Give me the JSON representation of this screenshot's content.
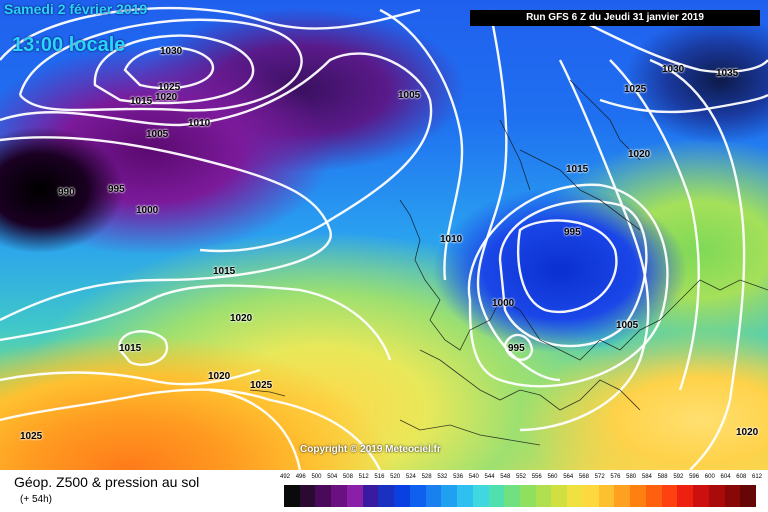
{
  "header": {
    "date": "Samedi 2 février 2019",
    "time": "13:00 locale",
    "run": "Run GFS 6 Z du Jeudi 31 janvier 2019"
  },
  "copyright": "Copyright © 2019 Meteociel.fr",
  "footer": {
    "title": "Géop. Z500 & pression au sol",
    "subtitle": "(+ 54h)"
  },
  "pressure_labels": [
    "1030",
    "1025",
    "1020",
    "1015",
    "1005",
    "1010",
    "1005",
    "990",
    "995",
    "1000",
    "1015",
    "1020",
    "1015",
    "1020",
    "1025",
    "1025",
    "1010",
    "1000",
    "995",
    "995",
    "1005",
    "1015",
    "1020",
    "1025",
    "1030",
    "1035",
    "1020",
    "1005"
  ],
  "scale": {
    "labels": [
      "492",
      "496",
      "500",
      "504",
      "508",
      "512",
      "516",
      "520",
      "524",
      "528",
      "532",
      "536",
      "540",
      "544",
      "548",
      "552",
      "556",
      "560",
      "564",
      "568",
      "572",
      "576",
      "580",
      "584",
      "588",
      "592",
      "596",
      "600",
      "604",
      "608",
      "612"
    ],
    "colors": [
      "#0a0a0a",
      "#2a0a30",
      "#4a0a5a",
      "#6a1080",
      "#8a20a8",
      "#3a1aa0",
      "#1a30c0",
      "#0a40e0",
      "#1060f0",
      "#1a80f0",
      "#20a0f0",
      "#30c0f0",
      "#40d8e0",
      "#50e0b0",
      "#70e080",
      "#90e060",
      "#b0e050",
      "#d0e040",
      "#f0e040",
      "#ffd840",
      "#ffc030",
      "#ffa020",
      "#ff8010",
      "#ff6010",
      "#ff4010",
      "#ee2010",
      "#cc1010",
      "#aa0a0a",
      "#880808",
      "#660606"
    ]
  }
}
